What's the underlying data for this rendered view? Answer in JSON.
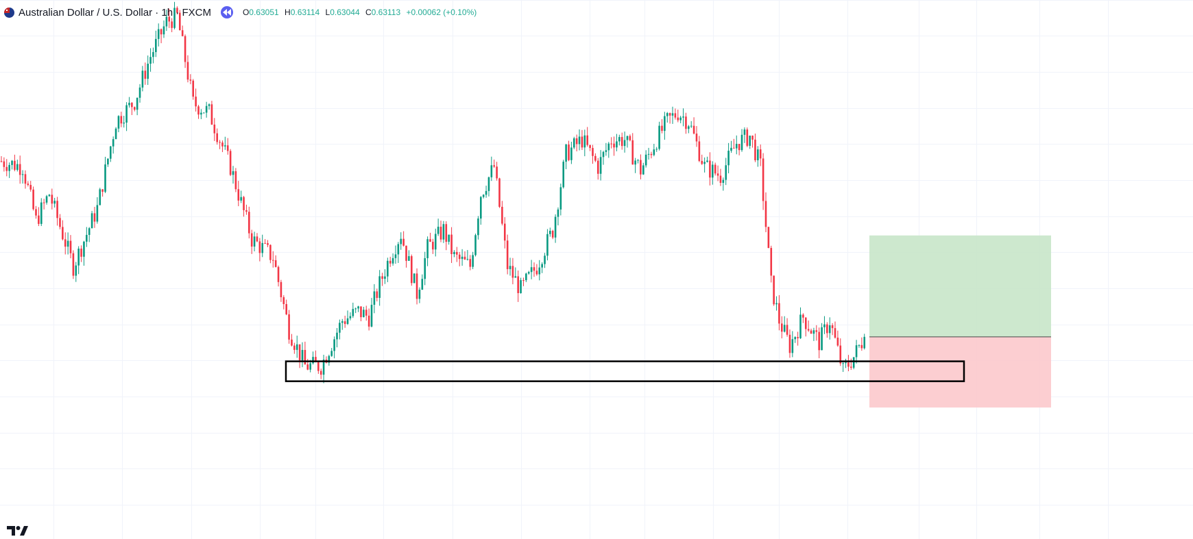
{
  "legend": {
    "symbol": "Australian Dollar / U.S. Dollar",
    "timeframe": "1h",
    "exchange": "FXCM",
    "open_label": "O",
    "open": "0.63051",
    "high_label": "H",
    "high": "0.63114",
    "low_label": "L",
    "low": "0.63044",
    "close_label": "C",
    "close": "0.63113",
    "change": "+0.00062 (+0.10%)",
    "flag_icon": "australia-flag-icon",
    "replay_icon": "replay-rewind-icon",
    "up_color": "#22ab94"
  },
  "colors": {
    "bull": "#089981",
    "bear": "#f23645",
    "grid": "#f0f3fa",
    "profit_zone": "#c8e6c9",
    "loss_zone": "#fcc9cc",
    "zone_box": "#000000"
  },
  "chart_data": {
    "type": "candlestick",
    "instrument": "AUDUSD",
    "interval": "1h",
    "price_min": 0.6262,
    "price_max": 0.6487,
    "path_points": [
      [
        0,
        0.6398
      ],
      [
        8,
        0.6395
      ],
      [
        13,
        0.6365
      ],
      [
        18,
        0.638
      ],
      [
        27,
        0.634
      ],
      [
        36,
        0.6372
      ],
      [
        43,
        0.642
      ],
      [
        50,
        0.6431
      ],
      [
        56,
        0.6456
      ],
      [
        62,
        0.6475
      ],
      [
        66,
        0.6478
      ],
      [
        72,
        0.643
      ],
      [
        78,
        0.6425
      ],
      [
        86,
        0.6395
      ],
      [
        94,
        0.6355
      ],
      [
        102,
        0.6345
      ],
      [
        108,
        0.6305
      ],
      [
        114,
        0.6285
      ],
      [
        120,
        0.6285
      ],
      [
        128,
        0.631
      ],
      [
        134,
        0.6315
      ],
      [
        138,
        0.6312
      ],
      [
        142,
        0.633
      ],
      [
        146,
        0.6346
      ],
      [
        150,
        0.6358
      ],
      [
        156,
        0.6325
      ],
      [
        160,
        0.635
      ],
      [
        166,
        0.636
      ],
      [
        170,
        0.6345
      ],
      [
        176,
        0.634
      ],
      [
        180,
        0.638
      ],
      [
        185,
        0.6395
      ],
      [
        190,
        0.634
      ],
      [
        195,
        0.6327
      ],
      [
        201,
        0.634
      ],
      [
        207,
        0.636
      ],
      [
        212,
        0.6402
      ],
      [
        218,
        0.641
      ],
      [
        224,
        0.6395
      ],
      [
        229,
        0.641
      ],
      [
        234,
        0.641
      ],
      [
        240,
        0.6393
      ],
      [
        246,
        0.641
      ],
      [
        250,
        0.642
      ],
      [
        254,
        0.6425
      ],
      [
        258,
        0.642
      ],
      [
        264,
        0.6395
      ],
      [
        270,
        0.639
      ],
      [
        276,
        0.6408
      ],
      [
        281,
        0.6412
      ],
      [
        285,
        0.6395
      ],
      [
        289,
        0.633
      ],
      [
        292,
        0.631
      ],
      [
        296,
        0.6296
      ],
      [
        301,
        0.6312
      ],
      [
        307,
        0.6298
      ],
      [
        311,
        0.631
      ],
      [
        316,
        0.6282
      ],
      [
        320,
        0.629
      ],
      [
        324,
        0.6301
      ]
    ],
    "trade_zone": {
      "entry": 0.6301,
      "take_profit": 0.6357,
      "stop_loss": 0.6262
    },
    "support_zone": {
      "top": 0.62875,
      "bottom": 0.62765
    },
    "watermark": "TV"
  }
}
